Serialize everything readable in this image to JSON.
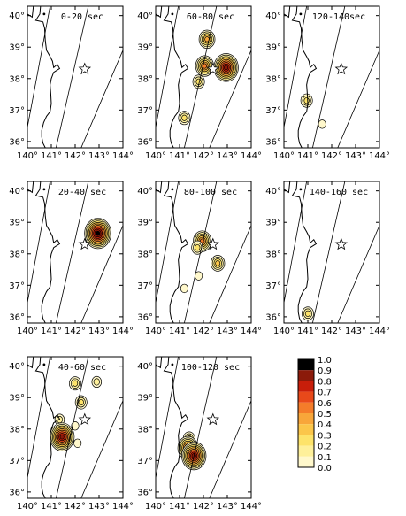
{
  "map": {
    "lon_ticks": [
      "140°",
      "141°",
      "142°",
      "143°",
      "144°"
    ],
    "lat_ticks": [
      "40°",
      "39°",
      "38°",
      "37°",
      "36°"
    ],
    "lon_range": [
      140,
      144
    ],
    "lat_range": [
      35.8,
      40.3
    ],
    "epicenter": {
      "lon": 142.4,
      "lat": 38.3,
      "symbol": "star-icon"
    },
    "colors": {
      "frame": "#000000",
      "coast": "#000000",
      "star": "#ffffff"
    }
  },
  "panels": [
    {
      "title": "0-20 sec",
      "sources": []
    },
    {
      "title": "60-80 sec",
      "sources": [
        {
          "lon": 142.15,
          "lat": 39.25,
          "level": 0.5
        },
        {
          "lon": 142.05,
          "lat": 38.4,
          "level": 0.6
        },
        {
          "lon": 142.95,
          "lat": 38.35,
          "level": 0.9
        },
        {
          "lon": 141.8,
          "lat": 37.9,
          "level": 0.3
        },
        {
          "lon": 141.2,
          "lat": 36.75,
          "level": 0.3
        }
      ]
    },
    {
      "title": "120-140sec",
      "sources": [
        {
          "lon": 140.95,
          "lat": 37.3,
          "level": 0.3
        },
        {
          "lon": 141.6,
          "lat": 36.55,
          "level": 0.1
        }
      ]
    },
    {
      "title": "20-40 sec",
      "sources": [
        {
          "lon": 142.95,
          "lat": 38.65,
          "level": 1.0
        }
      ]
    },
    {
      "title": "80-100 sec",
      "sources": [
        {
          "lon": 141.95,
          "lat": 38.4,
          "level": 0.6
        },
        {
          "lon": 141.75,
          "lat": 38.2,
          "level": 0.3
        },
        {
          "lon": 142.6,
          "lat": 37.7,
          "level": 0.4
        },
        {
          "lon": 141.8,
          "lat": 37.3,
          "level": 0.1
        },
        {
          "lon": 141.2,
          "lat": 36.9,
          "level": 0.1
        }
      ]
    },
    {
      "title": "140-160 sec",
      "sources": [
        {
          "lon": 141.0,
          "lat": 36.1,
          "level": 0.3
        }
      ]
    },
    {
      "title": "40-60 sec",
      "sources": [
        {
          "lon": 142.0,
          "lat": 39.45,
          "level": 0.3
        },
        {
          "lon": 142.9,
          "lat": 39.5,
          "level": 0.2
        },
        {
          "lon": 142.25,
          "lat": 38.85,
          "level": 0.3
        },
        {
          "lon": 141.35,
          "lat": 38.3,
          "level": 0.2
        },
        {
          "lon": 141.45,
          "lat": 37.75,
          "level": 0.9
        },
        {
          "lon": 142.1,
          "lat": 37.55,
          "level": 0.1
        },
        {
          "lon": 142.0,
          "lat": 38.1,
          "level": 0.1
        }
      ]
    },
    {
      "title": "100-120 sec",
      "sources": [
        {
          "lon": 141.4,
          "lat": 37.7,
          "level": 0.3
        },
        {
          "lon": 141.35,
          "lat": 37.4,
          "level": 0.7
        },
        {
          "lon": 141.6,
          "lat": 37.15,
          "level": 0.9
        }
      ]
    }
  ],
  "colorbar": {
    "labels": [
      "1.0",
      "0.9",
      "0.8",
      "0.7",
      "0.6",
      "0.5",
      "0.4",
      "0.3",
      "0.2",
      "0.1",
      "0.0"
    ],
    "colors": [
      "#000000",
      "#8b1a0a",
      "#c81e0a",
      "#e8491a",
      "#f47c2a",
      "#f8a63a",
      "#fbc64a",
      "#fde36a",
      "#fef09a",
      "#fff8cc",
      "#ffffff"
    ]
  }
}
